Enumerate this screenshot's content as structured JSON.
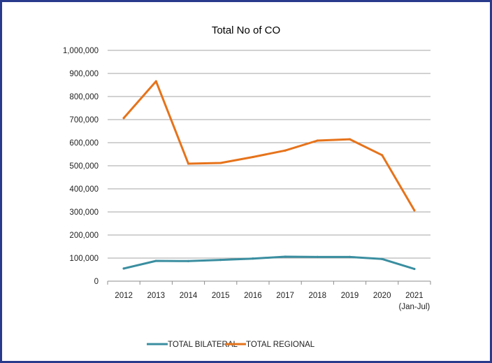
{
  "chart_data": {
    "type": "line",
    "title": "Total No of CO",
    "xlabel": "",
    "ylabel": "",
    "categories": [
      "2012",
      "2013",
      "2014",
      "2015",
      "2016",
      "2017",
      "2018",
      "2019",
      "2020",
      "2021"
    ],
    "category_sublabels": [
      "",
      "",
      "",
      "",
      "",
      "",
      "",
      "",
      "",
      "(Jan-Jul)"
    ],
    "yticks": [
      "0",
      "100,000",
      "200,000",
      "300,000",
      "400,000",
      "500,000",
      "600,000",
      "700,000",
      "800,000",
      "900,000",
      "1,000,000"
    ],
    "ylim": [
      0,
      1000000
    ],
    "grid": true,
    "legend_position": "bottom",
    "series": [
      {
        "name": "TOTAL BILATERAL",
        "color": "#3a8ea0",
        "values": [
          55000,
          88000,
          87000,
          92000,
          98000,
          106000,
          105000,
          105000,
          96000,
          53000
        ]
      },
      {
        "name": "TOTAL REGIONAL",
        "color": "#e6731b",
        "values": [
          707000,
          866000,
          509000,
          512000,
          538000,
          566000,
          609000,
          615000,
          546000,
          307000
        ]
      }
    ]
  }
}
